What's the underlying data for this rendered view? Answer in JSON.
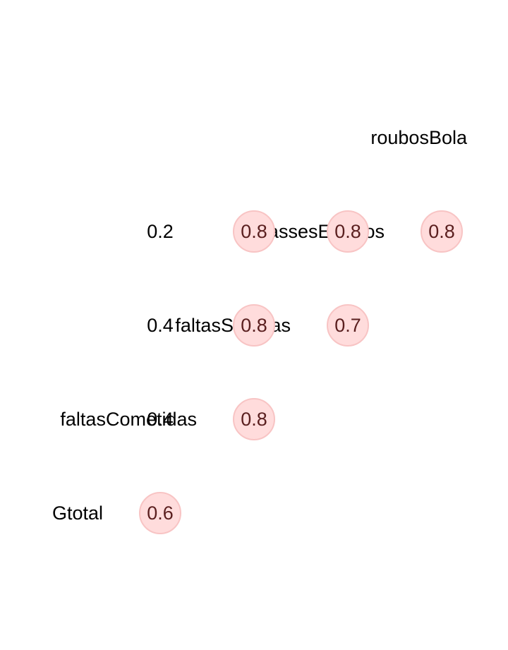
{
  "chart_data": {
    "type": "heatmap",
    "variables": [
      "Gtotal",
      "faltasCometidas",
      "faltasSofridas",
      "passesErrados",
      "roubosBola"
    ],
    "cells": [
      {
        "row": "faltasCometidas",
        "col": "Gtotal",
        "value": 0.6,
        "label": "0.6",
        "highlighted": true
      },
      {
        "row": "faltasSofridas",
        "col": "Gtotal",
        "value": 0.4,
        "label": "0.4",
        "highlighted": false
      },
      {
        "row": "faltasSofridas",
        "col": "faltasCometidas",
        "value": 0.8,
        "label": "0.8",
        "highlighted": true
      },
      {
        "row": "passesErrados",
        "col": "Gtotal",
        "value": 0.4,
        "label": "0.4",
        "highlighted": false
      },
      {
        "row": "passesErrados",
        "col": "faltasCometidas",
        "value": 0.8,
        "label": "0.8",
        "highlighted": true
      },
      {
        "row": "passesErrados",
        "col": "faltasSofridas",
        "value": 0.7,
        "label": "0.7",
        "highlighted": true
      },
      {
        "row": "roubosBola",
        "col": "Gtotal",
        "value": 0.2,
        "label": "0.2",
        "highlighted": false
      },
      {
        "row": "roubosBola",
        "col": "faltasCometidas",
        "value": 0.8,
        "label": "0.8",
        "highlighted": true
      },
      {
        "row": "roubosBola",
        "col": "faltasSofridas",
        "value": 0.8,
        "label": "0.8",
        "highlighted": true
      },
      {
        "row": "roubosBola",
        "col": "passesErrados",
        "value": 0.8,
        "label": "0.8",
        "highlighted": true
      }
    ],
    "colors": {
      "highlight_fill": "#ffdcdc",
      "highlight_stroke": "#f8c4c4",
      "highlight_text": "#5a1f1f",
      "text": "#000000"
    }
  }
}
